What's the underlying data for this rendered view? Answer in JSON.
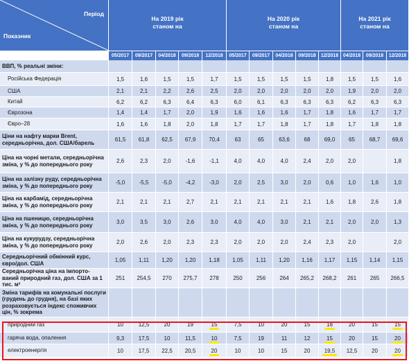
{
  "header": {
    "period_label": "Період",
    "indicator_label": "Показник",
    "groups": [
      {
        "line1": "На 2019 рік",
        "line2": "станом на"
      },
      {
        "line1": "На 2020 рік",
        "line2": "станом на"
      },
      {
        "line1": "На 2021 рік",
        "line2": "станом на"
      }
    ],
    "dates": [
      "05/2017",
      "09/2017",
      "04/2018",
      "09/2018",
      "12/2018",
      "05/2017",
      "09/2017",
      "04/2018",
      "09/2018",
      "12/2018",
      "04/2018",
      "09/2018",
      "12/2018"
    ]
  },
  "rows": [
    {
      "label": "ВВП, % реальні зміни:",
      "values": [
        "",
        "",
        "",
        "",
        "",
        "",
        "",
        "",
        "",
        "",
        "",
        "",
        ""
      ]
    },
    {
      "label": "Російська Федерація",
      "values": [
        "1,5",
        "1,6",
        "1,5",
        "1,5",
        "1,7",
        "1,5",
        "1,5",
        "1,5",
        "1,5",
        "1,8",
        "1,5",
        "1,5",
        "1,6"
      ]
    },
    {
      "label": "США",
      "values": [
        "2,1",
        "2,1",
        "2,2",
        "2,6",
        "2,5",
        "2,0",
        "2,0",
        "2,0",
        "2,0",
        "2,0",
        "1,9",
        "2,0",
        "2,0"
      ]
    },
    {
      "label": "Китай",
      "values": [
        "6,2",
        "6,2",
        "6,3",
        "6,4",
        "6,3",
        "6,0",
        "6,1",
        "6,3",
        "6,3",
        "6,3",
        "6,2",
        "6,3",
        "6,3"
      ]
    },
    {
      "label": "Єврозона",
      "values": [
        "1,4",
        "1,4",
        "1,7",
        "2,0",
        "1,9",
        "1,6",
        "1,6",
        "1,6",
        "1,7",
        "1,8",
        "1,6",
        "1,7",
        "1,7"
      ]
    },
    {
      "label": "Євро–28",
      "values": [
        "1,6",
        "1,6",
        "1,8",
        "2,0",
        "1,8",
        "1,7",
        "1,7",
        "1,8",
        "1,7",
        "1,8",
        "1,7",
        "1,8",
        "1,8"
      ]
    },
    {
      "label": "Ціни на нафту марки Brent, середньорічна, дол. США/барель",
      "values": [
        "61,5",
        "61,8",
        "62,5",
        "67,9",
        "70,4",
        "63",
        "65",
        "63,6",
        "68",
        "69,0",
        "65",
        "68,7",
        "69,6"
      ]
    },
    {
      "label": "Ціна на чорні метали, середньорічна зміна, у % до попереднього року",
      "values": [
        "2,6",
        "2,3",
        "2,0",
        "-1,6",
        "-1,1",
        "4,0",
        "4,0",
        "4,0",
        "2,4",
        "2,0",
        "2,0",
        "",
        "1,8"
      ]
    },
    {
      "label": "Ціна на залізну руду, середньорічна зміна, у % до попереднього року",
      "values": [
        "-5,0",
        "-5,5",
        "-5,0",
        "-4,2",
        "-3,0",
        "2,0",
        "2,5",
        "3,0",
        "2,0",
        "0,6",
        "1,0",
        "1,6",
        "1,0"
      ]
    },
    {
      "label": "Ціна на карбамід, середньорічна зміна, у % до попереднього року",
      "values": [
        "2,1",
        "2,1",
        "2,1",
        "2,7",
        "2,1",
        "2,1",
        "2,1",
        "2,1",
        "2,1",
        "1,6",
        "1,8",
        "2,6",
        "1,8"
      ]
    },
    {
      "label": "Ціна на пшеницю, середньорічна зміна, у % до попереднього року",
      "values": [
        "3,0",
        "3,5",
        "3,0",
        "2,6",
        "3,0",
        "4,0",
        "4,0",
        "3,0",
        "2,1",
        "2,1",
        "2,0",
        "2,0",
        "1,3"
      ]
    },
    {
      "label": "Ціна на кукурудзу, середньорічна зміна, у % до попереднього року",
      "values": [
        "2,0",
        "2,6",
        "2,0",
        "2,3",
        "2,3",
        "2,0",
        "2,0",
        "2,0",
        "2,4",
        "2,3",
        "2,0",
        "",
        "2,0"
      ]
    },
    {
      "label": "Середньорічний обмінний курс, євро/дол. США",
      "values": [
        "1,05",
        "1,11",
        "1,20",
        "1,20",
        "1,18",
        "1,05",
        "1,11",
        "1,20",
        "1,16",
        "1,17",
        "1,15",
        "1,14",
        "1,15"
      ]
    },
    {
      "label": "Середньорічна ціна на імпорто-ваний природний газ, дол. США за 1 тис. м³",
      "values": [
        "251",
        "254,5",
        "270",
        "275,7",
        "278",
        "250",
        "256",
        "264",
        "265,2",
        "268,2",
        "261",
        "265",
        "266,5"
      ]
    },
    {
      "label": "Зміна тарифів на комунальні послуги (грудень до грудня), на базі яких розраховується індекс споживчих цін, % зокрема",
      "values": [
        "",
        "",
        "",
        "",
        "",
        "",
        "",
        "",
        "",
        "",
        "",
        "",
        ""
      ]
    },
    {
      "label": "природний газ",
      "values": [
        "10",
        "12,5",
        "20",
        "19",
        "15",
        "7,5",
        "10",
        "20",
        "15",
        "18",
        "20",
        "15",
        "15"
      ]
    },
    {
      "label": "гаряча вода, опалення",
      "values": [
        "9,3",
        "17,5",
        "10",
        "11,5",
        "10",
        "7,5",
        "19",
        "11",
        "12",
        "15",
        "20",
        "15",
        "20"
      ]
    },
    {
      "label": "електроенергія",
      "values": [
        "10",
        "17,5",
        "22,5",
        "20,5",
        "20",
        "10",
        "10",
        "15",
        "20",
        "19,5",
        "12,5",
        "20",
        "20"
      ]
    }
  ],
  "colors": {
    "header_bg": "#4472c4",
    "band_dark": "#cfd9ee",
    "band_light": "#e8edf7",
    "highlight_border": "#e8141c",
    "marker": "#ffe600"
  }
}
